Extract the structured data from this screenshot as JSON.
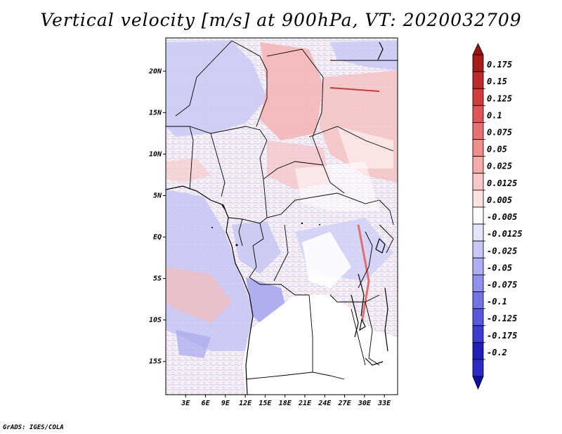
{
  "title": "Vertical velocity [m/s] at 900hPa, VT: 2020032709",
  "credit": "GrADS: IGES/COLA",
  "map": {
    "lon_range": [
      0,
      35
    ],
    "lat_range": [
      -19,
      24
    ],
    "lat_ticks": [
      {
        "value": 20,
        "label": "20N"
      },
      {
        "value": 15,
        "label": "15N"
      },
      {
        "value": 10,
        "label": "10N"
      },
      {
        "value": 5,
        "label": "5N"
      },
      {
        "value": 0,
        "label": "EQ"
      },
      {
        "value": -5,
        "label": "5S"
      },
      {
        "value": -10,
        "label": "10S"
      },
      {
        "value": -15,
        "label": "15S"
      }
    ],
    "lon_ticks": [
      {
        "value": 3,
        "label": "3E"
      },
      {
        "value": 6,
        "label": "6E"
      },
      {
        "value": 9,
        "label": "9E"
      },
      {
        "value": 12,
        "label": "12E"
      },
      {
        "value": 15,
        "label": "15E"
      },
      {
        "value": 18,
        "label": "18E"
      },
      {
        "value": 21,
        "label": "21E"
      },
      {
        "value": 24,
        "label": "24E"
      },
      {
        "value": 27,
        "label": "27E"
      },
      {
        "value": 30,
        "label": "30E"
      },
      {
        "value": 33,
        "label": "33E"
      }
    ]
  },
  "colorbar": {
    "levels": [
      {
        "label": "0.175",
        "color": "#a81c1c"
      },
      {
        "label": "0.15",
        "color": "#bf2a2a"
      },
      {
        "label": "0.125",
        "color": "#d13c3c"
      },
      {
        "label": "0.1",
        "color": "#e05555"
      },
      {
        "label": "0.075",
        "color": "#e87070"
      },
      {
        "label": "0.05",
        "color": "#f08c8c"
      },
      {
        "label": "0.025",
        "color": "#f7aaaa"
      },
      {
        "label": "0.0125",
        "color": "#fbc8c8"
      },
      {
        "label": "0.005",
        "color": "#fde2e2"
      },
      {
        "label": "-0.005",
        "color": "#ffffff"
      },
      {
        "label": "-0.0125",
        "color": "#e4e4fc"
      },
      {
        "label": "-0.025",
        "color": "#c8c8f8"
      },
      {
        "label": "-0.05",
        "color": "#aeaef4"
      },
      {
        "label": "-0.075",
        "color": "#9090ee"
      },
      {
        "label": "-0.1",
        "color": "#7474e6"
      },
      {
        "label": "-0.125",
        "color": "#5858dc"
      },
      {
        "label": "-0.175",
        "color": "#3c3cd0"
      },
      {
        "label": "-0.2",
        "color": "#2020b8"
      }
    ],
    "top_color": "#9a1414",
    "bottom_color": "#1010a0",
    "bottom_segment_color": "#2c2cc4"
  }
}
